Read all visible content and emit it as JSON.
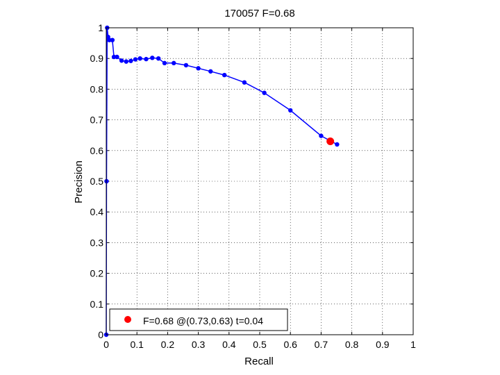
{
  "chart_data": {
    "type": "line",
    "title": "170057 F=0.68",
    "xlabel": "Recall",
    "ylabel": "Precision",
    "xlim": [
      0,
      1
    ],
    "ylim": [
      0,
      1
    ],
    "grid": true,
    "xticks": [
      "0",
      "0.1",
      "0.2",
      "0.3",
      "0.4",
      "0.5",
      "0.6",
      "0.7",
      "0.8",
      "0.9",
      "1"
    ],
    "yticks": [
      "0",
      "0.1",
      "0.2",
      "0.3",
      "0.4",
      "0.5",
      "0.6",
      "0.7",
      "0.8",
      "0.9",
      "1"
    ],
    "series": [
      {
        "color": "#0000ff",
        "marker": "circle",
        "x": [
          0.0,
          0.001,
          0.003,
          0.006,
          0.01,
          0.02,
          0.025,
          0.035,
          0.05,
          0.065,
          0.08,
          0.095,
          0.11,
          0.13,
          0.15,
          0.17,
          0.19,
          0.22,
          0.26,
          0.3,
          0.34,
          0.385,
          0.45,
          0.515,
          0.6,
          0.7,
          0.752
        ],
        "y": [
          0.0,
          0.5,
          1.0,
          0.97,
          0.96,
          0.96,
          0.905,
          0.905,
          0.893,
          0.89,
          0.892,
          0.897,
          0.9,
          0.898,
          0.902,
          0.9,
          0.885,
          0.885,
          0.878,
          0.868,
          0.858,
          0.846,
          0.822,
          0.788,
          0.731,
          0.648,
          0.62
        ]
      }
    ],
    "highlight": {
      "x": 0.73,
      "y": 0.63,
      "color": "#ff0000"
    },
    "legend": {
      "placement": "bottom-left",
      "entries": [
        {
          "label": "F=0.68 @(0.73,0.63) t=0.04",
          "color": "#ff0000"
        }
      ]
    }
  }
}
